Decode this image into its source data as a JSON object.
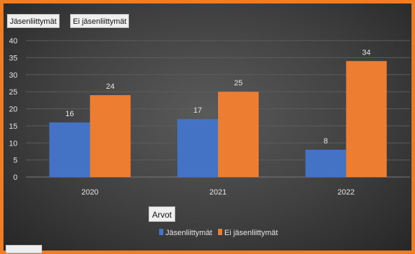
{
  "filter_buttons": [
    {
      "label": "Jäsenliittymät"
    },
    {
      "label": "Ei jäsenliittymät"
    }
  ],
  "axis_field_button": {
    "label": "Arvot"
  },
  "colors": {
    "frame": "#f07d22",
    "series_1": "#4472c4",
    "series_2": "#ed7d31",
    "text": "#e6e6e6",
    "grid": "#5c5c5c"
  },
  "chart_data": {
    "type": "bar",
    "title": "",
    "xlabel": "",
    "ylabel": "",
    "categories": [
      "2020",
      "2021",
      "2022"
    ],
    "series": [
      {
        "name": "Jäsenliittymät",
        "values": [
          16,
          17,
          8
        ]
      },
      {
        "name": "Ei jäsenliittymät",
        "values": [
          24,
          25,
          34
        ]
      }
    ],
    "ylim": [
      0,
      40
    ],
    "yticks": [
      0,
      5,
      10,
      15,
      20,
      25,
      30,
      35,
      40
    ],
    "grid": true,
    "data_labels": true,
    "legend_position": "bottom"
  }
}
